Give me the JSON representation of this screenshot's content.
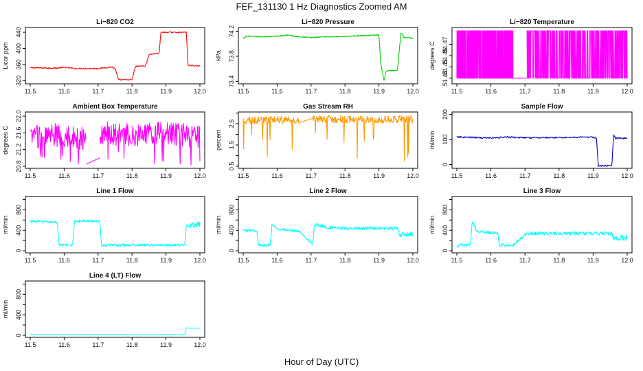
{
  "figure": {
    "title": "FEF_131130  1 Hz Diagnostics Zoomed AM",
    "xlabel": "Hour of Day (UTC)"
  },
  "chart_data": [
    {
      "type": "line",
      "title": "Li−820 CO2",
      "ylabel": "Licor ppm",
      "color": "#ff0000",
      "xlim": [
        11.5,
        12.0
      ],
      "xticks": [
        "11.5",
        "11.6",
        "11.7",
        "11.8",
        "11.9",
        "12.0"
      ],
      "ylim": [
        312,
        452
      ],
      "yticks": [
        320,
        360,
        400,
        440
      ],
      "noise": 1.5,
      "series": [
        {
          "x": [
            11.5,
            11.58,
            11.6,
            11.63,
            11.7,
            11.74,
            11.75,
            11.76,
            11.8,
            11.81,
            11.84,
            11.85,
            11.88,
            11.885,
            11.96,
            11.965,
            12.0
          ],
          "values": [
            352,
            351,
            353,
            350,
            350,
            354,
            350,
            322,
            322,
            355,
            357,
            385,
            388,
            440,
            440,
            358,
            356
          ]
        }
      ]
    },
    {
      "type": "line",
      "title": "Li−820 Pressure",
      "ylabel": "kPa",
      "color": "#00cc00",
      "xlim": [
        11.5,
        12.0
      ],
      "xticks": [
        "11.5",
        "11.6",
        "11.7",
        "11.8",
        "11.9",
        "12.0"
      ],
      "ylim": [
        73.36,
        74.26
      ],
      "yticks": [
        73.4,
        73.8,
        74.2
      ],
      "yticklabels": [
        "73.4",
        "73.8",
        "74.2"
      ],
      "noise": 0.008,
      "series": [
        {
          "x": [
            11.5,
            11.51,
            11.55,
            11.6,
            11.63,
            11.65,
            11.7,
            11.8,
            11.9,
            11.905,
            11.915,
            11.92,
            11.925,
            11.955,
            11.96,
            11.965,
            11.975,
            12.0
          ],
          "values": [
            74.08,
            74.12,
            74.11,
            74.12,
            74.14,
            74.12,
            74.1,
            74.12,
            74.14,
            73.7,
            73.4,
            73.55,
            73.57,
            73.58,
            73.9,
            74.18,
            74.1,
            74.09
          ]
        }
      ]
    },
    {
      "type": "line",
      "title": "Li−820 Temperature",
      "ylabel": "degrees C",
      "color": "#ff00ff",
      "xlim": [
        11.5,
        12.0
      ],
      "xticks": [
        "11.5",
        "11.6",
        "11.7",
        "11.8",
        "11.9",
        "12.0"
      ],
      "ylim": [
        51.435,
        51.485
      ],
      "yticks": [
        51.44,
        51.45,
        51.46,
        51.47
      ],
      "yticklabels": [
        "51.44",
        "51.45",
        "51.46",
        "51.47"
      ],
      "toggle": [
        51.44,
        51.482
      ],
      "toggle_ranges": [
        [
          11.5,
          11.665,
          0.6
        ],
        [
          11.705,
          12.0,
          0.6
        ]
      ],
      "series": [
        {
          "x": [
            11.5,
            11.665,
            11.705,
            12.0
          ],
          "values": [
            51.456,
            51.456,
            51.456,
            51.456
          ]
        }
      ]
    },
    {
      "type": "line",
      "title": "Ambient Box Temperature",
      "ylabel": "degrees C",
      "color": "#ff00ff",
      "xlim": [
        11.5,
        12.0
      ],
      "xticks": [
        "11.5",
        "11.6",
        "11.7",
        "11.8",
        "11.9",
        "12.0"
      ],
      "ylim": [
        20.75,
        22.1
      ],
      "yticks": [
        20.8,
        21.2,
        21.6,
        22.0
      ],
      "yticklabels": [
        "20.8",
        "21.2",
        "21.6",
        "22.0"
      ],
      "noise": 0.28,
      "spikes": [
        21.0,
        0.06
      ],
      "series": [
        {
          "x": [
            11.5,
            11.58,
            11.63,
            11.665,
            11.705,
            11.8,
            11.9,
            12.0
          ],
          "values": [
            21.5,
            21.55,
            21.5,
            21.45,
            21.6,
            21.55,
            21.6,
            21.5
          ]
        }
      ],
      "gap": {
        "x": [
          11.665,
          11.705
        ],
        "values": [
          20.85,
          21.0
        ]
      }
    },
    {
      "type": "line",
      "title": "Gas Stream RH",
      "ylabel": "percent",
      "color": "#ff9900",
      "xlim": [
        11.5,
        12.0
      ],
      "xticks": [
        "11.5",
        "11.6",
        "11.7",
        "11.8",
        "11.9",
        "12.0"
      ],
      "ylim": [
        0.4,
        3.05
      ],
      "yticks": [
        0.5,
        1.5,
        2.5
      ],
      "yticklabels": [
        "0.5",
        "1.5",
        "2.5"
      ],
      "yticks_minor": [
        1.0,
        2.0,
        3.0
      ],
      "noise": 0.18,
      "spikes": [
        1.4,
        0.05
      ],
      "series": [
        {
          "x": [
            11.5,
            11.6,
            11.665,
            11.705,
            11.8,
            11.9,
            12.0
          ],
          "values": [
            2.65,
            2.7,
            2.65,
            2.75,
            2.7,
            2.7,
            2.7
          ]
        }
      ],
      "gap": {
        "x": [
          11.665,
          11.705
        ],
        "values": [
          2.55,
          2.75
        ]
      }
    },
    {
      "type": "line",
      "title": "Sample Flow",
      "ylabel": "ml/min",
      "color": "#0000cc",
      "xlim": [
        11.5,
        12.0
      ],
      "xticks": [
        "11.5",
        "11.6",
        "11.7",
        "11.8",
        "11.9",
        "12.0"
      ],
      "ylim": [
        -15,
        210
      ],
      "yticks": [
        0,
        100,
        200
      ],
      "noise": 3,
      "series": [
        {
          "x": [
            11.5,
            11.6,
            11.65,
            11.7,
            11.8,
            11.9,
            11.91,
            11.915,
            11.955,
            11.96,
            11.965,
            12.0
          ],
          "values": [
            110,
            106,
            110,
            107,
            108,
            110,
            105,
            -5,
            -5,
            120,
            106,
            105
          ]
        }
      ]
    },
    {
      "type": "line",
      "title": "Line 1 Flow",
      "ylabel": "ml/min",
      "color": "#00ffff",
      "xlim": [
        11.5,
        12.0
      ],
      "xticks": [
        "11.5",
        "11.6",
        "11.7",
        "11.8",
        "11.9",
        "12.0"
      ],
      "ylim": [
        -40,
        1060
      ],
      "yticks": [
        0,
        200,
        400,
        600,
        800,
        1000
      ],
      "yticklabels": [
        "0",
        "400",
        "800"
      ],
      "yticklabel_values": [
        0,
        400,
        800
      ],
      "noise": 25,
      "band": [
        11.96,
        12.0,
        55
      ],
      "series": [
        {
          "x": [
            11.5,
            11.58,
            11.585,
            11.625,
            11.63,
            11.705,
            11.71,
            11.955,
            11.96,
            12.0
          ],
          "values": [
            580,
            560,
            110,
            110,
            580,
            580,
            110,
            110,
            500,
            520
          ]
        }
      ]
    },
    {
      "type": "line",
      "title": "Line 2 Flow",
      "ylabel": "ml/min",
      "color": "#00ffff",
      "xlim": [
        11.5,
        12.0
      ],
      "xticks": [
        "11.5",
        "11.6",
        "11.7",
        "11.8",
        "11.9",
        "12.0"
      ],
      "ylim": [
        -40,
        1060
      ],
      "yticks": [
        0,
        200,
        400,
        600,
        800,
        1000
      ],
      "yticklabels": [
        "0",
        "400",
        "800"
      ],
      "yticklabel_values": [
        0,
        400,
        800
      ],
      "noise": 25,
      "band": [
        11.705,
        11.96,
        30
      ],
      "band2": [
        11.96,
        12.0,
        55
      ],
      "series": [
        {
          "x": [
            11.5,
            11.54,
            11.545,
            11.58,
            11.585,
            11.6,
            11.665,
            11.705,
            11.71,
            11.75,
            11.8,
            11.9,
            11.955,
            11.96,
            12.0
          ],
          "values": [
            400,
            390,
            110,
            110,
            520,
            430,
            380,
            130,
            520,
            450,
            440,
            440,
            440,
            320,
            330
          ]
        }
      ]
    },
    {
      "type": "line",
      "title": "Line 3 Flow",
      "ylabel": "ml/min",
      "color": "#00ffff",
      "xlim": [
        11.5,
        12.0
      ],
      "xticks": [
        "11.5",
        "11.6",
        "11.7",
        "11.8",
        "11.9",
        "12.0"
      ],
      "ylim": [
        -40,
        1060
      ],
      "yticks": [
        0,
        200,
        400,
        600,
        800,
        1000
      ],
      "yticklabels": [
        "0",
        "400",
        "800"
      ],
      "yticklabel_values": [
        0,
        400,
        800
      ],
      "noise": 30,
      "band": [
        11.705,
        11.96,
        35
      ],
      "band2": [
        11.96,
        12.0,
        60
      ],
      "series": [
        {
          "x": [
            11.5,
            11.505,
            11.54,
            11.545,
            11.56,
            11.62,
            11.625,
            11.665,
            11.705,
            11.8,
            11.9,
            11.955,
            11.96,
            12.0
          ],
          "values": [
            60,
            110,
            110,
            580,
            380,
            340,
            110,
            110,
            340,
            340,
            340,
            340,
            230,
            260
          ]
        }
      ]
    },
    {
      "type": "line",
      "title": "Line 4 (LT) Flow",
      "ylabel": "ml/min",
      "color": "#00ffff",
      "xlim": [
        11.5,
        12.0
      ],
      "xticks": [
        "11.5",
        "11.6",
        "11.7",
        "11.8",
        "11.9",
        "12.0"
      ],
      "ylim": [
        -40,
        1060
      ],
      "yticks": [
        0,
        200,
        400,
        600,
        800,
        1000
      ],
      "yticklabels": [
        "0",
        "400",
        "800"
      ],
      "yticklabel_values": [
        0,
        400,
        800
      ],
      "noise": 2,
      "series": [
        {
          "x": [
            11.5,
            11.665,
            11.7,
            11.955,
            11.96,
            11.965,
            12.0
          ],
          "values": [
            10,
            10,
            10,
            10,
            150,
            140,
            140
          ]
        }
      ]
    }
  ]
}
